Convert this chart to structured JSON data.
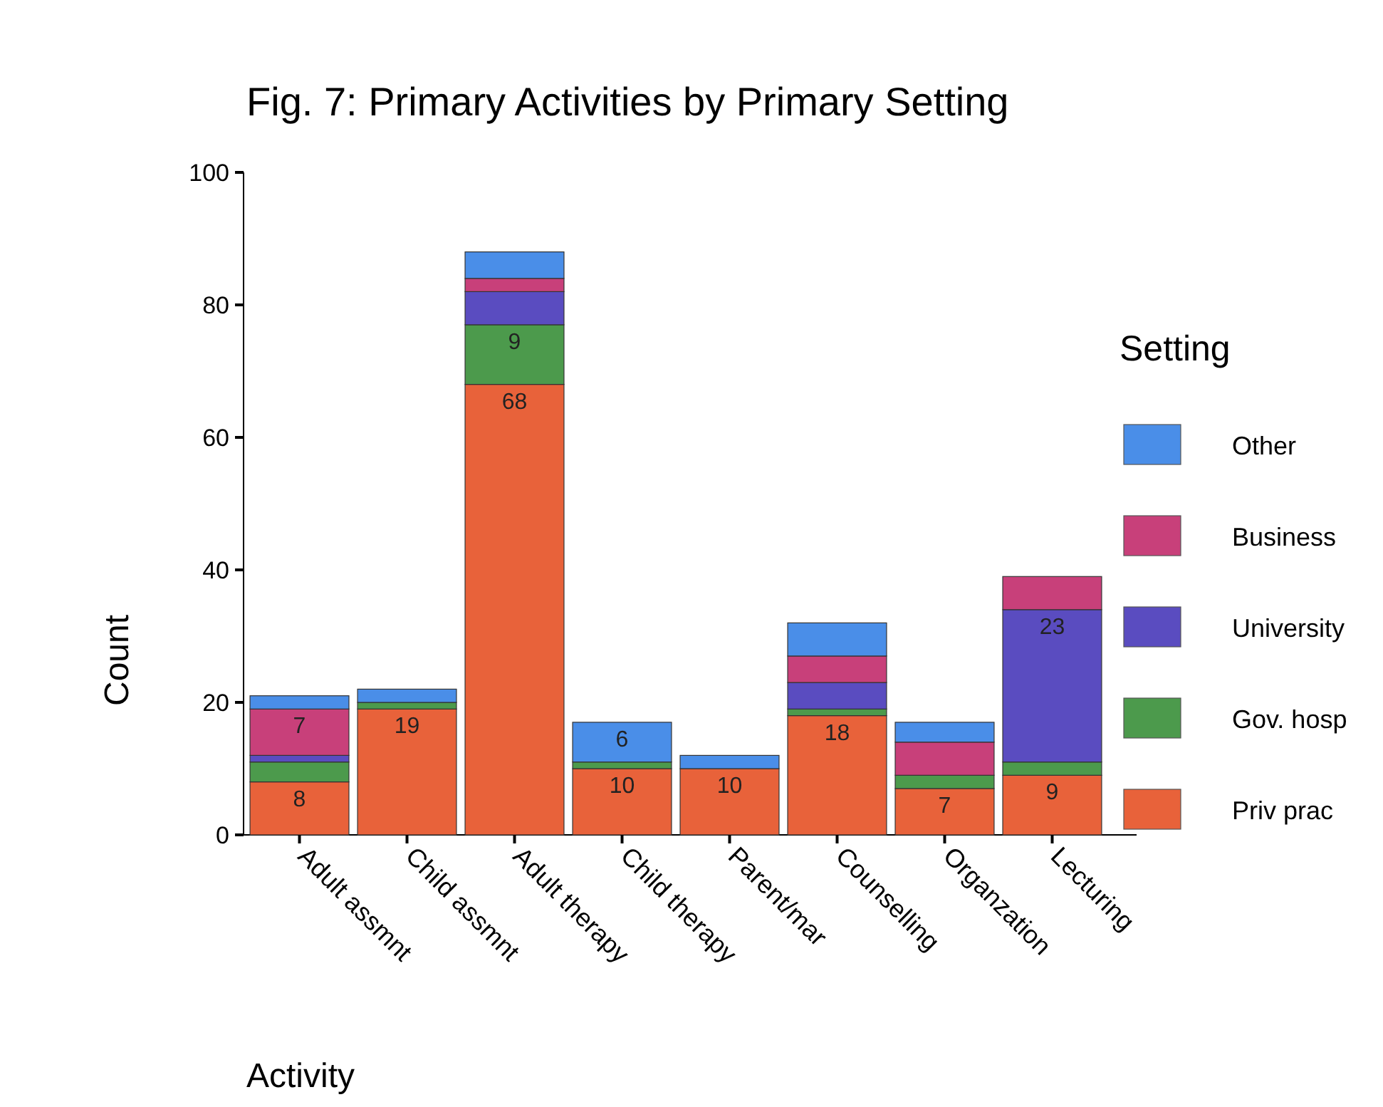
{
  "chart_data": {
    "type": "bar",
    "title": "Fig.  7: Primary Activities by Primary Setting",
    "xlabel": "Activity",
    "ylabel": "Count",
    "legend_title": "Setting",
    "legend": "right",
    "stacked": true,
    "grid": false,
    "categories": [
      "Adult assmnt",
      "Child assmnt",
      "Adult therapy",
      "Child therapy",
      "Parent/mar",
      "Counselling",
      "Organzation",
      "Lecturing"
    ],
    "ylim": [
      0,
      100
    ],
    "yticks": [
      0,
      20,
      40,
      60,
      80,
      100
    ],
    "series": [
      {
        "name": "Priv prac",
        "color": "#e8623a",
        "values": [
          8,
          19,
          68,
          10,
          10,
          18,
          7,
          9
        ],
        "value_labels": [
          "8",
          "19",
          "68",
          "10",
          "10",
          "18",
          "7",
          "9"
        ]
      },
      {
        "name": "Gov. hosp",
        "color": "#4c9a4c",
        "values": [
          3,
          1,
          9,
          1,
          0,
          1,
          2,
          2
        ],
        "value_labels": [
          null,
          null,
          "9",
          null,
          null,
          null,
          null,
          null
        ]
      },
      {
        "name": "University",
        "color": "#5a4cc0",
        "values": [
          1,
          0,
          5,
          0,
          0,
          4,
          0,
          23
        ],
        "value_labels": [
          null,
          null,
          null,
          null,
          null,
          null,
          null,
          "23"
        ]
      },
      {
        "name": "Business",
        "color": "#c8407a",
        "values": [
          7,
          0,
          2,
          0,
          0,
          4,
          5,
          5
        ],
        "value_labels": [
          "7",
          null,
          null,
          null,
          null,
          null,
          null,
          null
        ]
      },
      {
        "name": "Other",
        "color": "#4a8ee8",
        "values": [
          2,
          2,
          4,
          6,
          2,
          5,
          3,
          0
        ],
        "value_labels": [
          null,
          null,
          null,
          "6",
          null,
          null,
          null,
          null
        ]
      }
    ]
  }
}
